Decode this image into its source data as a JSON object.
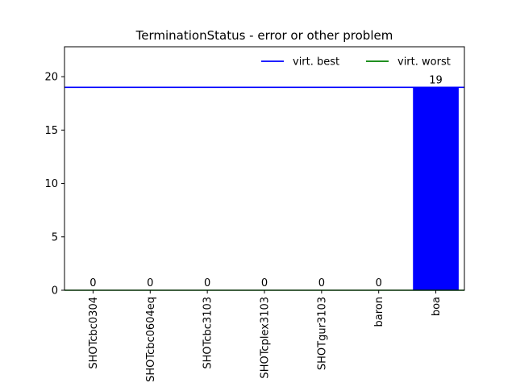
{
  "chart_data": {
    "type": "bar",
    "title": "TerminationStatus - error or other problem",
    "xlabel": "",
    "ylabel": "",
    "categories": [
      "SHOTcbc0304",
      "SHOTcbc0604eq",
      "SHOTcbc3103",
      "SHOTcplex3103",
      "SHOTgur3103",
      "baron",
      "boa"
    ],
    "values": [
      0,
      0,
      0,
      0,
      0,
      0,
      19
    ],
    "bar_color": "#0000ff",
    "ylim": [
      0,
      22.8
    ],
    "yticks": [
      0,
      5,
      10,
      15,
      20
    ],
    "grid": false,
    "legend_position": "top-right",
    "reference_lines": [
      {
        "name": "virt. best",
        "value": 19,
        "color": "#0000ff"
      },
      {
        "name": "virt. worst",
        "value": 0,
        "color": "#008000"
      }
    ]
  }
}
